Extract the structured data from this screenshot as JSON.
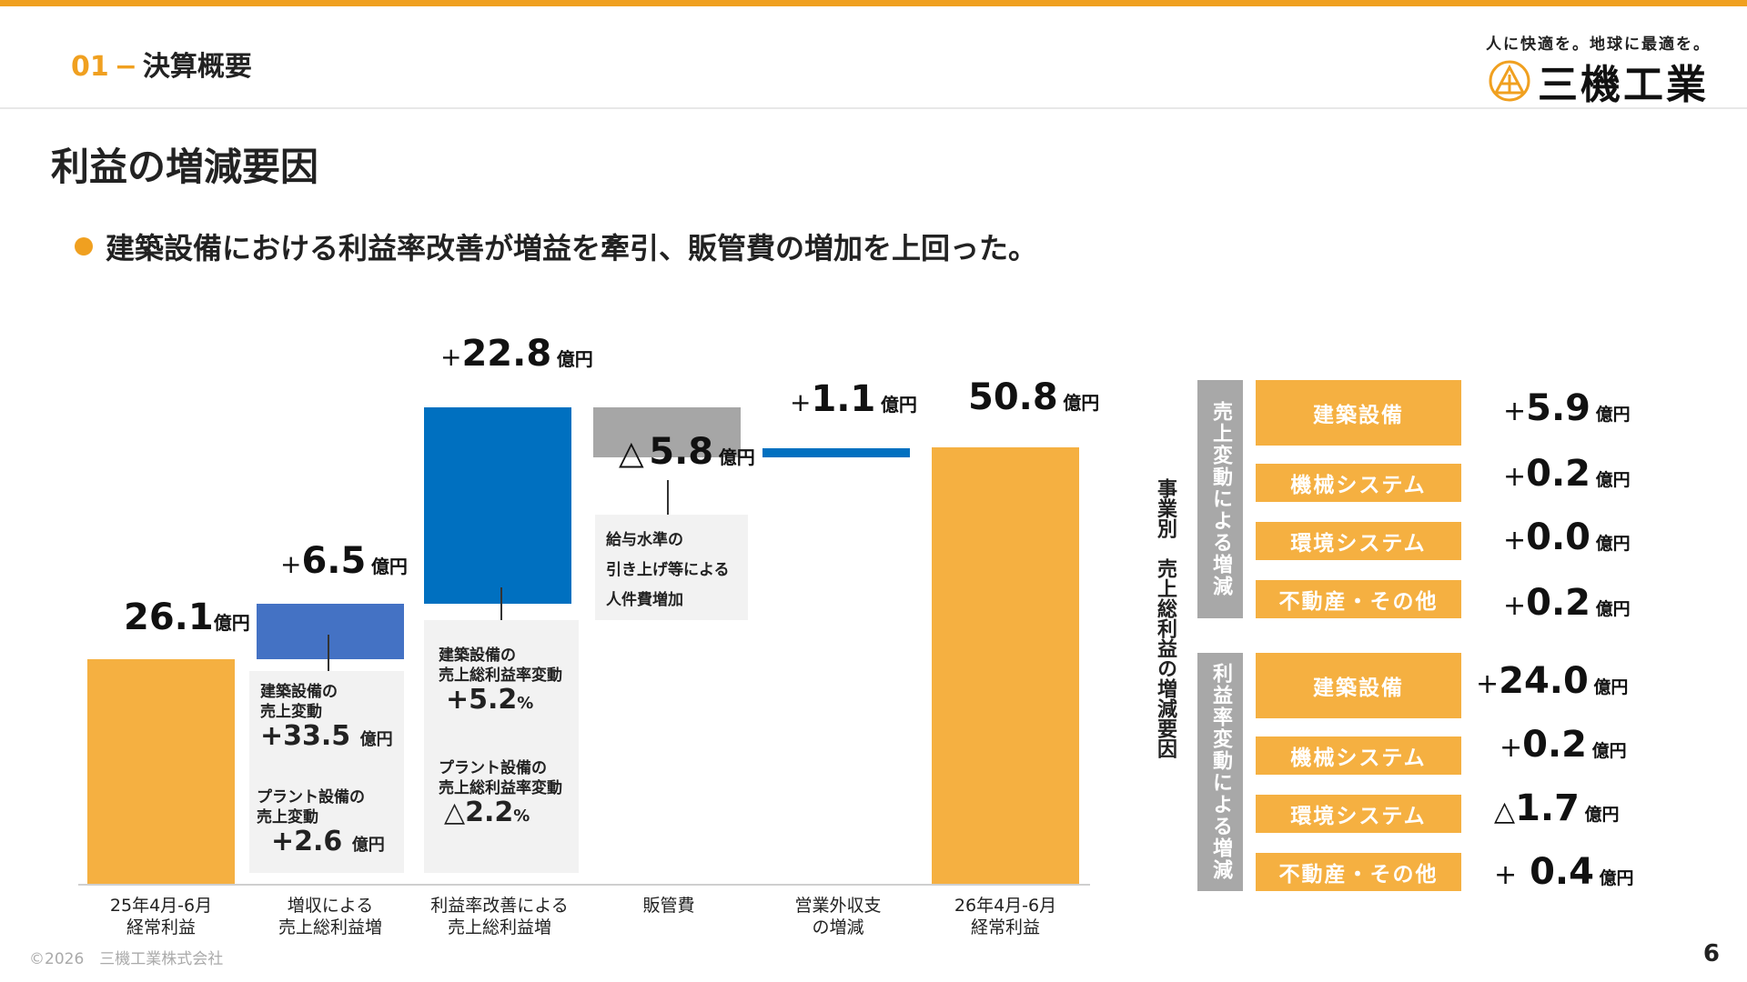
{
  "header": {
    "section_num": "01",
    "section_dash": "−",
    "section_title": "決算概要",
    "tagline": "人に快適を。地球に最適を。",
    "company_logo": "三機工業"
  },
  "title": "利益の増減要因",
  "bullet": "建築設備における利益率改善が増益を牽引、販管費の増加を上回った。",
  "chart_data": {
    "type": "bar",
    "subtype": "waterfall",
    "unit": "億円",
    "categories": [
      "25年4月-6月\n経常利益",
      "増収による\n売上総利益増",
      "利益率改善による\n売上総利益増",
      "販管費",
      "営業外収支\nの増減",
      "26年4月-6月\n経常利益"
    ],
    "values": [
      26.1,
      6.5,
      22.8,
      -5.8,
      1.1,
      50.8
    ],
    "value_labels": [
      {
        "prefix": "",
        "num": "26.1",
        "unit": "億円"
      },
      {
        "prefix": "+",
        "num": "6.5",
        "unit": "億円"
      },
      {
        "prefix": "+",
        "num": "22.8",
        "unit": "億円"
      },
      {
        "prefix": "△",
        "num": "5.8",
        "unit": "億円"
      },
      {
        "prefix": "+",
        "num": "1.1",
        "unit": "億円"
      },
      {
        "prefix": "",
        "num": "50.8",
        "unit": "億円"
      }
    ],
    "colors": [
      "#f5b041",
      "#4472c4",
      "#0070c0",
      "#a6a6a6",
      "#0070c0",
      "#f5b041"
    ],
    "notes": {
      "sales": {
        "item1": "建築設備の\n売上変動",
        "value1": "+33.5",
        "unit1": "億円",
        "item2": "プラント設備の\n売上変動",
        "value2": "+2.6",
        "unit2": "億円"
      },
      "margin": {
        "item1": "建築設備の\n売上総利益率変動",
        "value1": "+5.2",
        "unit1": "%",
        "item2": "プラント設備の\n売上総利益率変動",
        "value2": "△2.2",
        "unit2": "%"
      },
      "sga": "給与水準の\n引き上げ等による\n人件費増加"
    }
  },
  "segment_panel": {
    "vertical_title": "事業別　売上総利益の増減要因",
    "groups": [
      {
        "label": "売上変動による増減",
        "items": [
          {
            "name": "建築設備",
            "prefix": "+",
            "value": "5.9",
            "unit": "億円"
          },
          {
            "name": "機械システム",
            "prefix": "+",
            "value": "0.2",
            "unit": "億円"
          },
          {
            "name": "環境システム",
            "prefix": "+",
            "value": "0.0",
            "unit": "億円"
          },
          {
            "name": "不動産・その他",
            "prefix": "+",
            "value": "0.2",
            "unit": "億円"
          }
        ]
      },
      {
        "label": "利益率変動による増減",
        "items": [
          {
            "name": "建築設備",
            "prefix": "+",
            "value": "24.0",
            "unit": "億円"
          },
          {
            "name": "機械システム",
            "prefix": "+",
            "value": "0.2",
            "unit": "億円"
          },
          {
            "name": "環境システム",
            "prefix": "△",
            "value": "1.7",
            "unit": "億円"
          },
          {
            "name": "不動産・その他",
            "prefix": "+",
            "value": " 0.4",
            "unit": "億円"
          }
        ]
      }
    ]
  },
  "footer": "©2026　三機工業株式会社",
  "page_number": "6"
}
